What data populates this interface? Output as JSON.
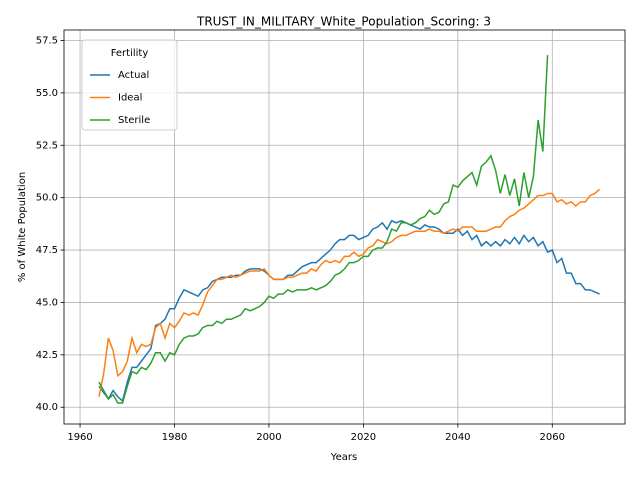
{
  "chart_data": {
    "type": "line",
    "title": "TRUST_IN_MILITARY_White_Population_Scoring: 3",
    "xlabel": "Years",
    "ylabel": "% of White Population",
    "legend_title": "Fertility",
    "legend": "upper left",
    "grid": true,
    "x": [
      1964,
      1965,
      1966,
      1967,
      1968,
      1969,
      1970,
      1971,
      1972,
      1973,
      1974,
      1975,
      1976,
      1977,
      1978,
      1979,
      1980,
      1981,
      1982,
      1983,
      1984,
      1985,
      1986,
      1987,
      1988,
      1989,
      1990,
      1991,
      1992,
      1993,
      1994,
      1995,
      1996,
      1997,
      1998,
      1999,
      2000,
      2001,
      2002,
      2003,
      2004,
      2005,
      2006,
      2007,
      2008,
      2009,
      2010,
      2011,
      2012,
      2013,
      2014,
      2015,
      2016,
      2017,
      2018,
      2019,
      2020,
      2021,
      2022,
      2023,
      2024,
      2025,
      2026,
      2027,
      2028,
      2029,
      2030,
      2031,
      2032,
      2033,
      2034,
      2035,
      2036,
      2037,
      2038,
      2039,
      2040,
      2041,
      2042,
      2043,
      2044,
      2045,
      2046,
      2047,
      2048,
      2049,
      2050,
      2051,
      2052,
      2053,
      2054,
      2055,
      2056,
      2057,
      2058,
      2059,
      2060,
      2061,
      2062,
      2063,
      2064,
      2065,
      2066,
      2067,
      2068,
      2069,
      2070
    ],
    "series": [
      {
        "name": "Actual",
        "color": "#1f77b4",
        "values": [
          41.0,
          40.7,
          40.4,
          40.8,
          40.5,
          40.3,
          41.2,
          41.9,
          41.9,
          42.2,
          42.5,
          42.8,
          43.9,
          44.0,
          44.2,
          44.7,
          44.7,
          45.2,
          45.6,
          45.5,
          45.4,
          45.3,
          45.6,
          45.7,
          46.0,
          46.1,
          46.2,
          46.2,
          46.2,
          46.3,
          46.3,
          46.5,
          46.6,
          46.6,
          46.6,
          46.5,
          46.3,
          46.1,
          46.1,
          46.1,
          46.3,
          46.3,
          46.5,
          46.7,
          46.8,
          46.9,
          46.9,
          47.1,
          47.3,
          47.5,
          47.8,
          48.0,
          48.0,
          48.2,
          48.2,
          48.0,
          48.1,
          48.2,
          48.5,
          48.6,
          48.8,
          48.5,
          48.9,
          48.8,
          48.9,
          48.8,
          48.7,
          48.6,
          48.5,
          48.7,
          48.6,
          48.6,
          48.5,
          48.3,
          48.3,
          48.3,
          48.5,
          48.2,
          48.4,
          48.0,
          48.2,
          47.7,
          47.9,
          47.7,
          47.9,
          47.7,
          48.0,
          47.8,
          48.1,
          47.8,
          48.2,
          47.9,
          48.1,
          47.7,
          47.9,
          47.4,
          47.5,
          46.9,
          47.1,
          46.4,
          46.4,
          45.9,
          45.9,
          45.6,
          45.6,
          45.5,
          45.4
        ]
      },
      {
        "name": "Ideal",
        "color": "#ff7f0e",
        "values": [
          40.5,
          41.6,
          43.3,
          42.7,
          41.5,
          41.7,
          42.2,
          43.3,
          42.6,
          43.0,
          42.9,
          43.0,
          43.8,
          44.0,
          43.3,
          44.0,
          43.8,
          44.1,
          44.5,
          44.4,
          44.5,
          44.4,
          44.9,
          45.5,
          45.8,
          46.1,
          46.1,
          46.2,
          46.3,
          46.2,
          46.3,
          46.4,
          46.5,
          46.5,
          46.5,
          46.6,
          46.3,
          46.1,
          46.1,
          46.1,
          46.2,
          46.2,
          46.3,
          46.4,
          46.4,
          46.6,
          46.5,
          46.8,
          47.0,
          46.9,
          47.0,
          46.9,
          47.2,
          47.2,
          47.4,
          47.2,
          47.3,
          47.6,
          47.7,
          48.0,
          47.9,
          47.8,
          47.9,
          48.1,
          48.2,
          48.2,
          48.3,
          48.4,
          48.4,
          48.4,
          48.5,
          48.4,
          48.4,
          48.3,
          48.4,
          48.5,
          48.4,
          48.6,
          48.6,
          48.6,
          48.4,
          48.4,
          48.4,
          48.5,
          48.6,
          48.6,
          48.9,
          49.1,
          49.2,
          49.4,
          49.5,
          49.7,
          49.9,
          50.1,
          50.1,
          50.2,
          50.2,
          49.8,
          49.9,
          49.7,
          49.8,
          49.6,
          49.8,
          49.8,
          50.1,
          50.2,
          50.4
        ]
      },
      {
        "name": "Sterile",
        "color": "#2ca02c",
        "values": [
          41.2,
          40.8,
          40.4,
          40.6,
          40.2,
          40.2,
          41.0,
          41.7,
          41.6,
          41.9,
          41.8,
          42.1,
          42.6,
          42.6,
          42.2,
          42.6,
          42.5,
          43.0,
          43.3,
          43.4,
          43.4,
          43.5,
          43.8,
          43.9,
          43.9,
          44.1,
          44.0,
          44.2,
          44.2,
          44.3,
          44.4,
          44.7,
          44.6,
          44.7,
          44.8,
          45.0,
          45.3,
          45.2,
          45.4,
          45.4,
          45.6,
          45.5,
          45.6,
          45.6,
          45.6,
          45.7,
          45.6,
          45.7,
          45.8,
          46.0,
          46.3,
          46.4,
          46.6,
          46.9,
          46.9,
          47.0,
          47.2,
          47.2,
          47.5,
          47.6,
          47.6,
          47.9,
          48.5,
          48.4,
          48.8,
          48.8,
          48.7,
          48.8,
          49.0,
          49.1,
          49.4,
          49.2,
          49.3,
          49.7,
          49.8,
          50.6,
          50.5,
          50.8,
          51.0,
          51.2,
          50.6,
          51.5,
          51.7,
          52.0,
          51.3,
          50.2,
          51.1,
          50.1,
          50.9,
          49.6,
          51.2,
          50.0,
          51.0,
          53.7,
          52.2,
          56.8,
          null,
          null,
          null,
          null,
          null,
          null,
          null,
          null,
          null,
          null,
          null
        ]
      }
    ],
    "xlim": [
      1956.6,
      2075.4
    ],
    "xticks": [
      1960,
      1980,
      2000,
      2020,
      2040,
      2060
    ],
    "ylim": [
      39.2,
      58.0
    ],
    "yticks": [
      {
        "value": 40,
        "label": "40.0"
      },
      42.5,
      {
        "value": 45,
        "label": "45.0"
      },
      47.5,
      {
        "value": 50,
        "label": "50.0"
      },
      52.5,
      {
        "value": 55,
        "label": "55.0"
      },
      57.5
    ]
  }
}
